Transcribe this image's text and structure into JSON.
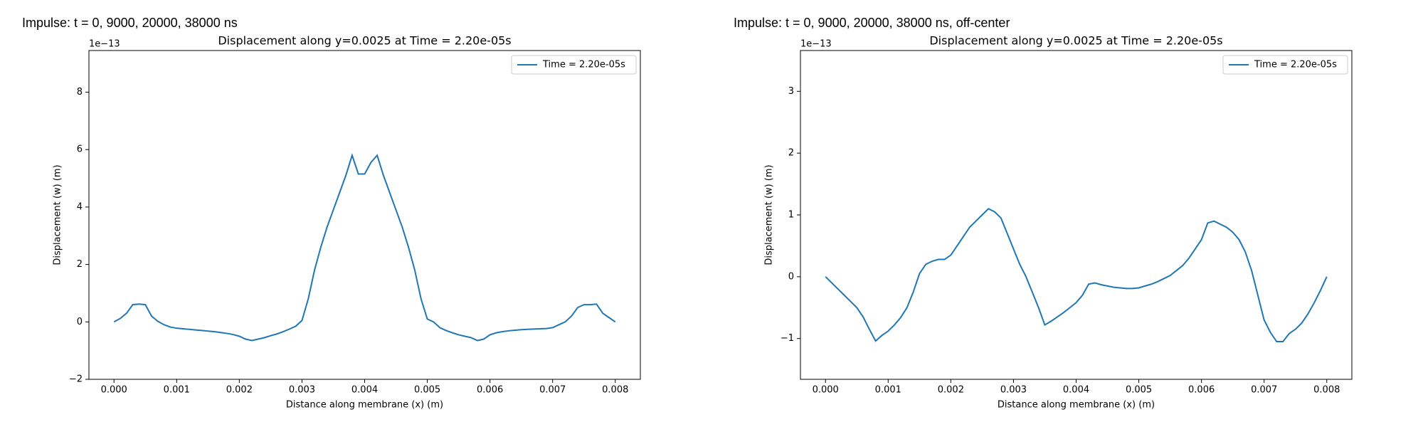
{
  "chart_data": [
    {
      "type": "line",
      "title": "Impulse: t = 0, 9000, 20000, 38000 ns",
      "subtitle": "Displacement along y=0.0025 at Time = 2.20e-05s",
      "x_label": "Distance along membrane (x) (m)",
      "y_label": "Displacement (w) (m)",
      "y_offset_label": "1e−13",
      "legend": "upper right",
      "xlim": [
        -0.0004,
        0.0084
      ],
      "ylim": [
        -2,
        9.45
      ],
      "xticks": [
        {
          "value": 0,
          "label": "0.000"
        },
        {
          "value": 0.001,
          "label": "0.001"
        },
        {
          "value": 0.002,
          "label": "0.002"
        },
        {
          "value": 0.003,
          "label": "0.003"
        },
        {
          "value": 0.004,
          "label": "0.004"
        },
        {
          "value": 0.005,
          "label": "0.005"
        },
        {
          "value": 0.006,
          "label": "0.006"
        },
        {
          "value": 0.007,
          "label": "0.007"
        },
        {
          "value": 0.008,
          "label": "0.008"
        }
      ],
      "yticks": [
        {
          "value": -2,
          "label": "−2"
        },
        0,
        2,
        4,
        6,
        8
      ],
      "x": [
        0,
        0.0001,
        0.0002,
        0.0003,
        0.0004,
        0.0005,
        0.0006,
        0.0007,
        0.0008,
        0.0009,
        0.001,
        0.0011,
        0.0012,
        0.0013,
        0.0014,
        0.0015,
        0.0016,
        0.0017,
        0.0018,
        0.0019,
        0.002,
        0.0021,
        0.0022,
        0.0023,
        0.0024,
        0.0025,
        0.0026,
        0.0027,
        0.0028,
        0.0029,
        0.003,
        0.0031,
        0.0032,
        0.0033,
        0.0034,
        0.0035,
        0.0036,
        0.0037,
        0.0038,
        0.0039,
        0.004,
        0.0041,
        0.0042,
        0.0043,
        0.0044,
        0.0045,
        0.0046,
        0.0047,
        0.0048,
        0.0049,
        0.005,
        0.0051,
        0.0052,
        0.0053,
        0.0054,
        0.0055,
        0.0056,
        0.0057,
        0.0058,
        0.0059,
        0.006,
        0.0061,
        0.0062,
        0.0063,
        0.0064,
        0.0065,
        0.0066,
        0.0067,
        0.0068,
        0.0069,
        0.007,
        0.0071,
        0.0072,
        0.0073,
        0.0074,
        0.0075,
        0.0076,
        0.0077,
        0.0078,
        0.0079,
        0.008
      ],
      "series": [
        {
          "name": "Time = 2.20e-05s",
          "color": "#1f77b4",
          "values": [
            0,
            0.12,
            0.3,
            0.6,
            0.62,
            0.6,
            0.2,
            0.02,
            -0.1,
            -0.18,
            -0.22,
            -0.24,
            -0.26,
            -0.28,
            -0.3,
            -0.32,
            -0.34,
            -0.37,
            -0.4,
            -0.44,
            -0.5,
            -0.6,
            -0.65,
            -0.6,
            -0.55,
            -0.48,
            -0.42,
            -0.34,
            -0.25,
            -0.15,
            0.05,
            0.8,
            1.8,
            2.6,
            3.3,
            3.9,
            4.5,
            5.1,
            5.8,
            5.15,
            5.15,
            5.55,
            5.8,
            5.1,
            4.5,
            3.9,
            3.3,
            2.6,
            1.8,
            0.8,
            0.1,
            0.0,
            -0.2,
            -0.3,
            -0.38,
            -0.45,
            -0.5,
            -0.55,
            -0.65,
            -0.6,
            -0.45,
            -0.38,
            -0.34,
            -0.31,
            -0.29,
            -0.27,
            -0.26,
            -0.25,
            -0.24,
            -0.23,
            -0.2,
            -0.1,
            0.0,
            0.2,
            0.5,
            0.6,
            0.6,
            0.62,
            0.3,
            0.15,
            0.0
          ]
        }
      ]
    },
    {
      "type": "line",
      "title": "Impulse: t = 0, 9000, 20000, 38000 ns, off-center",
      "subtitle": "Displacement along y=0.0025 at Time = 2.20e-05s",
      "x_label": "Distance along membrane (x) (m)",
      "y_label": "Displacement (w) (m)",
      "y_offset_label": "1e−13",
      "legend": "upper right",
      "xlim": [
        -0.0004,
        0.0084
      ],
      "ylim": [
        -1.66,
        3.66
      ],
      "xticks": [
        {
          "value": 0,
          "label": "0.000"
        },
        {
          "value": 0.001,
          "label": "0.001"
        },
        {
          "value": 0.002,
          "label": "0.002"
        },
        {
          "value": 0.003,
          "label": "0.003"
        },
        {
          "value": 0.004,
          "label": "0.004"
        },
        {
          "value": 0.005,
          "label": "0.005"
        },
        {
          "value": 0.006,
          "label": "0.006"
        },
        {
          "value": 0.007,
          "label": "0.007"
        },
        {
          "value": 0.008,
          "label": "0.008"
        }
      ],
      "yticks": [
        {
          "value": -1,
          "label": "−1"
        },
        0,
        1,
        2,
        3
      ],
      "x": [
        0,
        0.0001,
        0.0002,
        0.0003,
        0.0004,
        0.0005,
        0.0006,
        0.0007,
        0.0008,
        0.0009,
        0.001,
        0.0011,
        0.0012,
        0.0013,
        0.0014,
        0.0015,
        0.0016,
        0.0017,
        0.0018,
        0.0019,
        0.002,
        0.0021,
        0.0022,
        0.0023,
        0.0024,
        0.0025,
        0.0026,
        0.0027,
        0.0028,
        0.0029,
        0.003,
        0.0031,
        0.0032,
        0.0033,
        0.0034,
        0.0035,
        0.0036,
        0.0037,
        0.0038,
        0.0039,
        0.004,
        0.0041,
        0.0042,
        0.0043,
        0.0044,
        0.0045,
        0.0046,
        0.0047,
        0.0048,
        0.0049,
        0.005,
        0.0051,
        0.0052,
        0.0053,
        0.0054,
        0.0055,
        0.0056,
        0.0057,
        0.0058,
        0.0059,
        0.006,
        0.0061,
        0.0062,
        0.0063,
        0.0064,
        0.0065,
        0.0066,
        0.0067,
        0.0068,
        0.0069,
        0.007,
        0.0071,
        0.0072,
        0.0073,
        0.0074,
        0.0075,
        0.0076,
        0.0077,
        0.0078,
        0.0079,
        0.008
      ],
      "series": [
        {
          "name": "Time = 2.20e-05s",
          "color": "#1f77b4",
          "values": [
            0,
            -0.1,
            -0.2,
            -0.3,
            -0.4,
            -0.5,
            -0.65,
            -0.85,
            -1.04,
            -0.95,
            -0.88,
            -0.78,
            -0.66,
            -0.5,
            -0.25,
            0.05,
            0.2,
            0.25,
            0.28,
            0.28,
            0.35,
            0.5,
            0.65,
            0.8,
            0.9,
            1.0,
            1.1,
            1.05,
            0.95,
            0.7,
            0.45,
            0.2,
            0.0,
            -0.25,
            -0.5,
            -0.78,
            -0.72,
            -0.65,
            -0.58,
            -0.5,
            -0.42,
            -0.3,
            -0.12,
            -0.1,
            -0.13,
            -0.15,
            -0.17,
            -0.18,
            -0.19,
            -0.19,
            -0.18,
            -0.15,
            -0.12,
            -0.08,
            -0.03,
            0.02,
            0.1,
            0.18,
            0.3,
            0.45,
            0.6,
            0.87,
            0.9,
            0.85,
            0.8,
            0.72,
            0.6,
            0.4,
            0.1,
            -0.3,
            -0.7,
            -0.9,
            -1.05,
            -1.05,
            -0.92,
            -0.85,
            -0.75,
            -0.6,
            -0.42,
            -0.22,
            0.0
          ]
        }
      ]
    }
  ]
}
